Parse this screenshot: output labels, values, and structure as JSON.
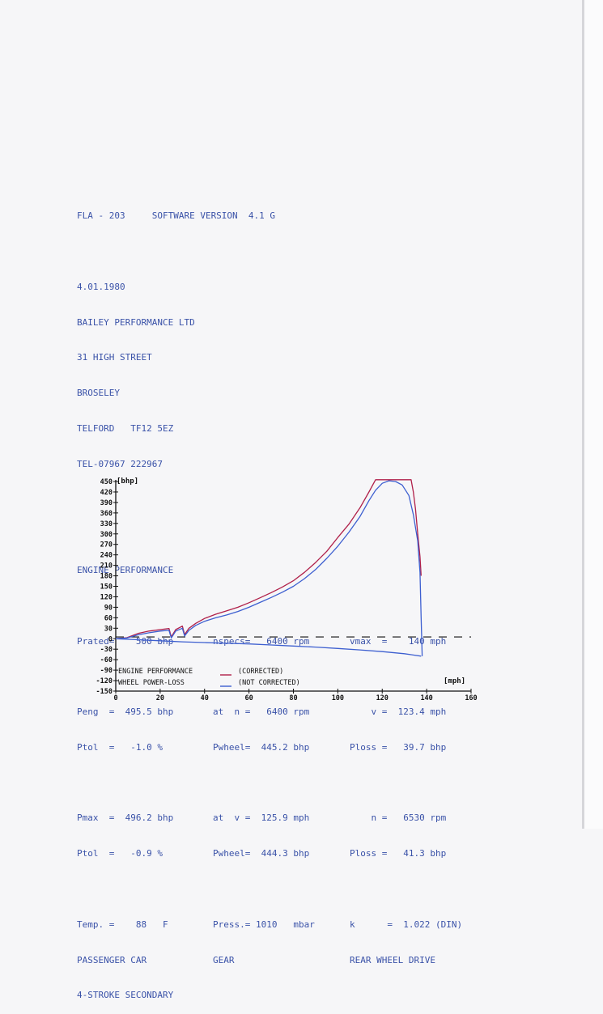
{
  "header": {
    "title": "FLA - 203     SOFTWARE VERSION  4.1 G",
    "date": "4.01.1980",
    "address": [
      "BAILEY PERFORMANCE LTD",
      "31 HIGH STREET",
      "BROSELEY",
      "TELFORD   TF12 5EZ",
      "TEL-07967 222967"
    ]
  },
  "section_title": "ENGINE PERFORMANCE",
  "rows": [
    [
      "Prated=    500 bhp",
      "nspecs=   6400 rpm",
      "vmax  =    140 mph"
    ],
    null,
    [
      "Peng  =  495.5 bhp",
      "at  n =   6400 rpm",
      "    v =  123.4 mph"
    ],
    [
      "Ptol  =   -1.0 %",
      "Pwheel=  445.2 bhp",
      "Ploss =   39.7 bhp"
    ],
    null,
    [
      "Pmax  =  496.2 bhp",
      "at  v =  125.9 mph",
      "    n =   6530 rpm"
    ],
    [
      "Ptol  =   -0.9 %",
      "Pwheel=  444.3 bhp",
      "Ploss =   41.3 bhp"
    ],
    null,
    [
      "Temp. =    88   F",
      "Press.= 1010   mbar",
      "k      =  1.022 (DIN)"
    ],
    [
      "PASSENGER CAR",
      "GEAR",
      "REAR WHEEL DRIVE"
    ],
    [
      "4-STROKE SECONDARY",
      "",
      ""
    ]
  ],
  "colors": {
    "text": "#3a52a8",
    "corrected": "#b0204a",
    "not_corrected": "#3d5fd0",
    "axis": "#111111"
  },
  "chart_data": {
    "type": "line",
    "ylabel": "[bhp]",
    "xlabel": "[mph]",
    "xlim": [
      0,
      160
    ],
    "ylim": [
      -150,
      450
    ],
    "x_ticks": [
      0,
      20,
      40,
      60,
      80,
      100,
      120,
      140,
      160
    ],
    "y_ticks": [
      450,
      420,
      390,
      360,
      330,
      300,
      270,
      240,
      210,
      180,
      150,
      120,
      90,
      60,
      30,
      0,
      -30,
      -60,
      -90,
      -120,
      -150
    ],
    "legend": [
      {
        "label": "ENGINE PERFORMANCE",
        "note": "(CORRECTED)",
        "color": "#b0204a"
      },
      {
        "label": "WHEEL POWER-LOSS",
        "note": "(NOT CORRECTED)",
        "color": "#3d5fd0"
      }
    ],
    "series": [
      {
        "x": [
          0,
          5,
          10,
          15,
          20,
          24,
          25,
          27,
          30,
          31,
          33,
          36,
          40,
          45,
          50,
          55,
          60,
          65,
          70,
          75,
          80,
          85,
          90,
          95,
          100,
          105,
          110,
          114,
          117,
          122,
          126,
          130,
          133,
          134,
          135,
          136,
          137,
          137.5
        ],
        "y": [
          0,
          3,
          15,
          22,
          26,
          29,
          5,
          26,
          36,
          12,
          30,
          44,
          58,
          70,
          80,
          90,
          103,
          117,
          132,
          148,
          166,
          190,
          218,
          250,
          290,
          328,
          375,
          420,
          455,
          455,
          455,
          455,
          455,
          420,
          370,
          300,
          235,
          180
        ]
      },
      {
        "x": [
          0,
          5,
          10,
          15,
          20,
          24,
          25,
          27,
          30,
          31,
          33,
          36,
          40,
          45,
          50,
          55,
          60,
          65,
          70,
          75,
          80,
          85,
          90,
          95,
          100,
          105,
          110,
          114,
          117,
          120,
          123,
          126,
          129,
          132,
          134,
          136,
          137,
          137.5,
          138
        ],
        "y": [
          0,
          2,
          11,
          17,
          22,
          24,
          2,
          22,
          30,
          8,
          24,
          38,
          50,
          60,
          68,
          78,
          90,
          104,
          118,
          133,
          150,
          172,
          198,
          230,
          265,
          305,
          350,
          395,
          425,
          445,
          452,
          450,
          440,
          410,
          355,
          280,
          190,
          60,
          -50
        ]
      },
      {
        "x": [
          0,
          10,
          20,
          30,
          40,
          50,
          60,
          70,
          80,
          90,
          100,
          110,
          120,
          130,
          137.5
        ],
        "y": [
          0,
          -3,
          -6,
          -9,
          -11,
          -13,
          -15,
          -18,
          -21,
          -24,
          -28,
          -32,
          -37,
          -43,
          -50
        ]
      }
    ],
    "reference_line": {
      "y": 5,
      "style": "dashed"
    }
  }
}
